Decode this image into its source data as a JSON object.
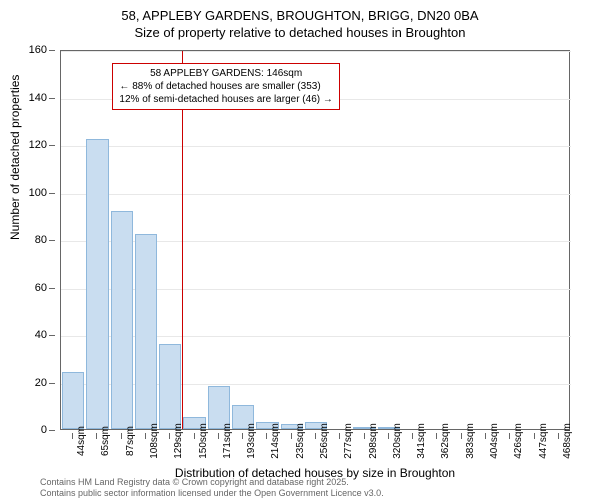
{
  "title": {
    "main": "58, APPLEBY GARDENS, BROUGHTON, BRIGG, DN20 0BA",
    "sub": "Size of property relative to detached houses in Broughton"
  },
  "chart": {
    "type": "histogram",
    "ylabel": "Number of detached properties",
    "xlabel": "Distribution of detached houses by size in Broughton",
    "ylim": [
      0,
      160
    ],
    "yticks": [
      0,
      20,
      40,
      60,
      80,
      100,
      120,
      140,
      160
    ],
    "xticks": [
      "44sqm",
      "65sqm",
      "87sqm",
      "108sqm",
      "129sqm",
      "150sqm",
      "171sqm",
      "193sqm",
      "214sqm",
      "235sqm",
      "256sqm",
      "277sqm",
      "298sqm",
      "320sqm",
      "341sqm",
      "362sqm",
      "383sqm",
      "404sqm",
      "426sqm",
      "447sqm",
      "468sqm"
    ],
    "bars": [
      24,
      122,
      92,
      82,
      36,
      5,
      18,
      10,
      3,
      2,
      3,
      0,
      1,
      1,
      0,
      0,
      0,
      0,
      0,
      0,
      0
    ],
    "bar_color": "#c9ddf0",
    "bar_border_color": "#8fb8dc",
    "background_color": "#ffffff",
    "grid_color": "#e8e8e8",
    "axis_color": "#666666",
    "marker_color": "#cc0000",
    "marker_position": 5,
    "annotation": {
      "line1": "58 APPLEBY GARDENS: 146sqm",
      "line2": "← 88% of detached houses are smaller (353)",
      "line3": "12% of semi-detached houses are larger (46) →"
    }
  },
  "footer": {
    "line1": "Contains HM Land Registry data © Crown copyright and database right 2025.",
    "line2": "Contains public sector information licensed under the Open Government Licence v3.0."
  }
}
